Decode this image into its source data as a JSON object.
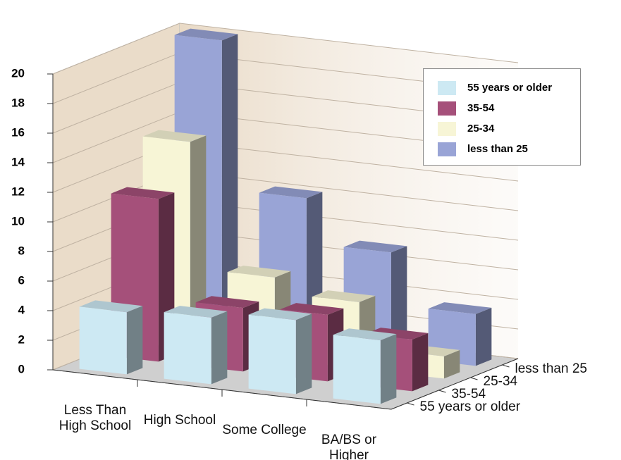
{
  "chart_data": {
    "type": "bar3d",
    "categories": [
      "Less Than High School",
      "High School",
      "Some College",
      "BA/BS or Higher"
    ],
    "series": [
      {
        "name": "55 years or older",
        "color": "#cde9f3",
        "values": [
          4.2,
          4.5,
          5,
          4.3
        ]
      },
      {
        "name": "35-54",
        "color": "#a5507a",
        "values": [
          11,
          4.3,
          4.5,
          3.5
        ]
      },
      {
        "name": "25-34",
        "color": "#f7f5d6",
        "values": [
          14,
          5.5,
          4.5,
          1.5
        ]
      },
      {
        "name": "less than 25",
        "color": "#99a4d6",
        "values": [
          20,
          10,
          7,
          3.5
        ]
      }
    ],
    "ylim": [
      0,
      20
    ],
    "yticks": [
      0,
      2,
      4,
      6,
      8,
      10,
      12,
      14,
      16,
      18,
      20
    ],
    "grid": true
  }
}
